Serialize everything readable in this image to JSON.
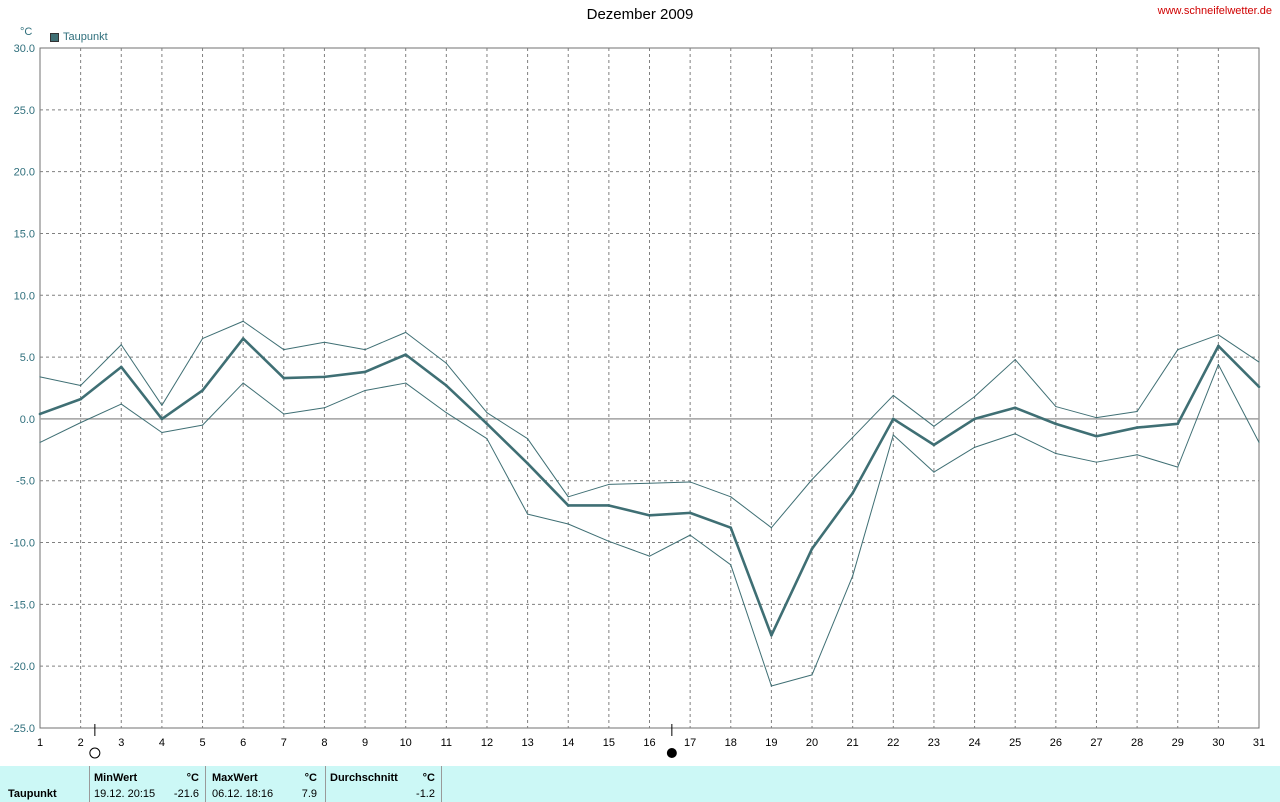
{
  "header": {
    "title": "Dezember 2009",
    "site": "www.schneifelwetter.de",
    "y_unit": "°C",
    "legend_label": "Taupunkt"
  },
  "footer": {
    "series_label": "Taupunkt",
    "min": {
      "header": "MinWert",
      "unit": "°C",
      "datetime": "19.12.  20:15",
      "value": "-21.6"
    },
    "max": {
      "header": "MaxWert",
      "unit": "°C",
      "datetime": "06.12.  18:16",
      "value": "7.9"
    },
    "avg": {
      "header": "Durchschnitt",
      "unit": "°C",
      "value": "-1.2"
    }
  },
  "colors": {
    "series": "#3f6f74",
    "grid": "#808080",
    "zero_line": "#a0a0a0",
    "footer_bg": "#ccf8f6"
  },
  "moon_phases": [
    {
      "day": 2.35,
      "icon": "full-moon-icon"
    },
    {
      "day": 16.55,
      "icon": "new-moon-icon"
    }
  ],
  "chart_data": {
    "type": "line",
    "title": "Dezember 2009",
    "ylabel": "°C",
    "ylim": [
      -25,
      30
    ],
    "yticks": [
      "30.0",
      "25.0",
      "20.0",
      "15.0",
      "10.0",
      "5.0",
      "0.0",
      "-5.0",
      "-10.0",
      "-15.0",
      "-20.0",
      "-25.0"
    ],
    "x": [
      1,
      2,
      3,
      4,
      5,
      6,
      7,
      8,
      9,
      10,
      11,
      12,
      13,
      14,
      15,
      16,
      17,
      18,
      19,
      20,
      21,
      22,
      23,
      24,
      25,
      26,
      27,
      28,
      29,
      30,
      31
    ],
    "xlim": [
      1,
      31
    ],
    "grid": true,
    "legend": "top-left",
    "series": [
      {
        "name": "Taupunkt",
        "role": "mean",
        "values": [
          0.4,
          1.6,
          4.2,
          0.0,
          2.3,
          6.5,
          3.3,
          3.4,
          3.8,
          5.2,
          2.7,
          -0.4,
          -3.6,
          -7.0,
          -7.0,
          -7.8,
          -7.6,
          -8.8,
          -17.5,
          -10.5,
          -6.0,
          0.0,
          -2.1,
          0.0,
          0.9,
          -0.4,
          -1.4,
          -0.7,
          -0.4,
          5.9,
          2.6
        ]
      },
      {
        "role": "max",
        "values": [
          3.4,
          2.7,
          6.0,
          1.1,
          6.5,
          7.9,
          5.6,
          6.2,
          5.6,
          7.0,
          4.5,
          0.5,
          -1.6,
          -6.3,
          -5.3,
          -5.2,
          -5.1,
          -6.3,
          -8.8,
          -4.9,
          -1.5,
          1.9,
          -0.6,
          1.8,
          4.8,
          1.0,
          0.1,
          0.6,
          5.6,
          6.8,
          4.6
        ]
      },
      {
        "role": "min",
        "values": [
          -1.9,
          -0.3,
          1.2,
          -1.1,
          -0.5,
          2.9,
          0.4,
          0.9,
          2.3,
          2.9,
          0.5,
          -1.6,
          -7.7,
          -8.5,
          -9.9,
          -11.1,
          -9.4,
          -11.8,
          -21.6,
          -20.7,
          -12.7,
          -1.3,
          -4.3,
          -2.3,
          -1.2,
          -2.8,
          -3.5,
          -2.9,
          -3.9,
          4.4,
          -1.9
        ]
      }
    ]
  }
}
